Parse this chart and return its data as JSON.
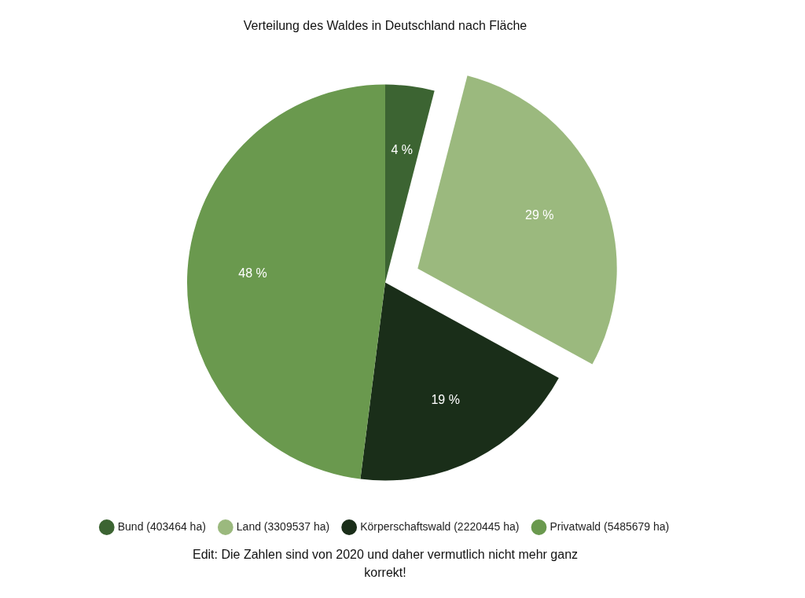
{
  "chart_data": {
    "type": "pie",
    "title": "Verteilung des Waldes in Deutschland nach Fläche",
    "categories": [
      "Bund (403464 ha)",
      "Land (3309537 ha)",
      "Körperschaftswald (2220445 ha)",
      "Privatwald (5485679 ha)"
    ],
    "values": [
      4,
      29,
      19,
      48
    ],
    "colors": [
      "#3c6432",
      "#9bb97e",
      "#1a2e19",
      "#6a994e"
    ],
    "value_labels": [
      "4 %",
      "29 %",
      "19 %",
      "48 %"
    ],
    "legend": "bottom",
    "annotations": [
      "Edit: Die Zahlen sind von 2020 und daher vermutlich nicht mehr ganz korrekt!"
    ]
  }
}
